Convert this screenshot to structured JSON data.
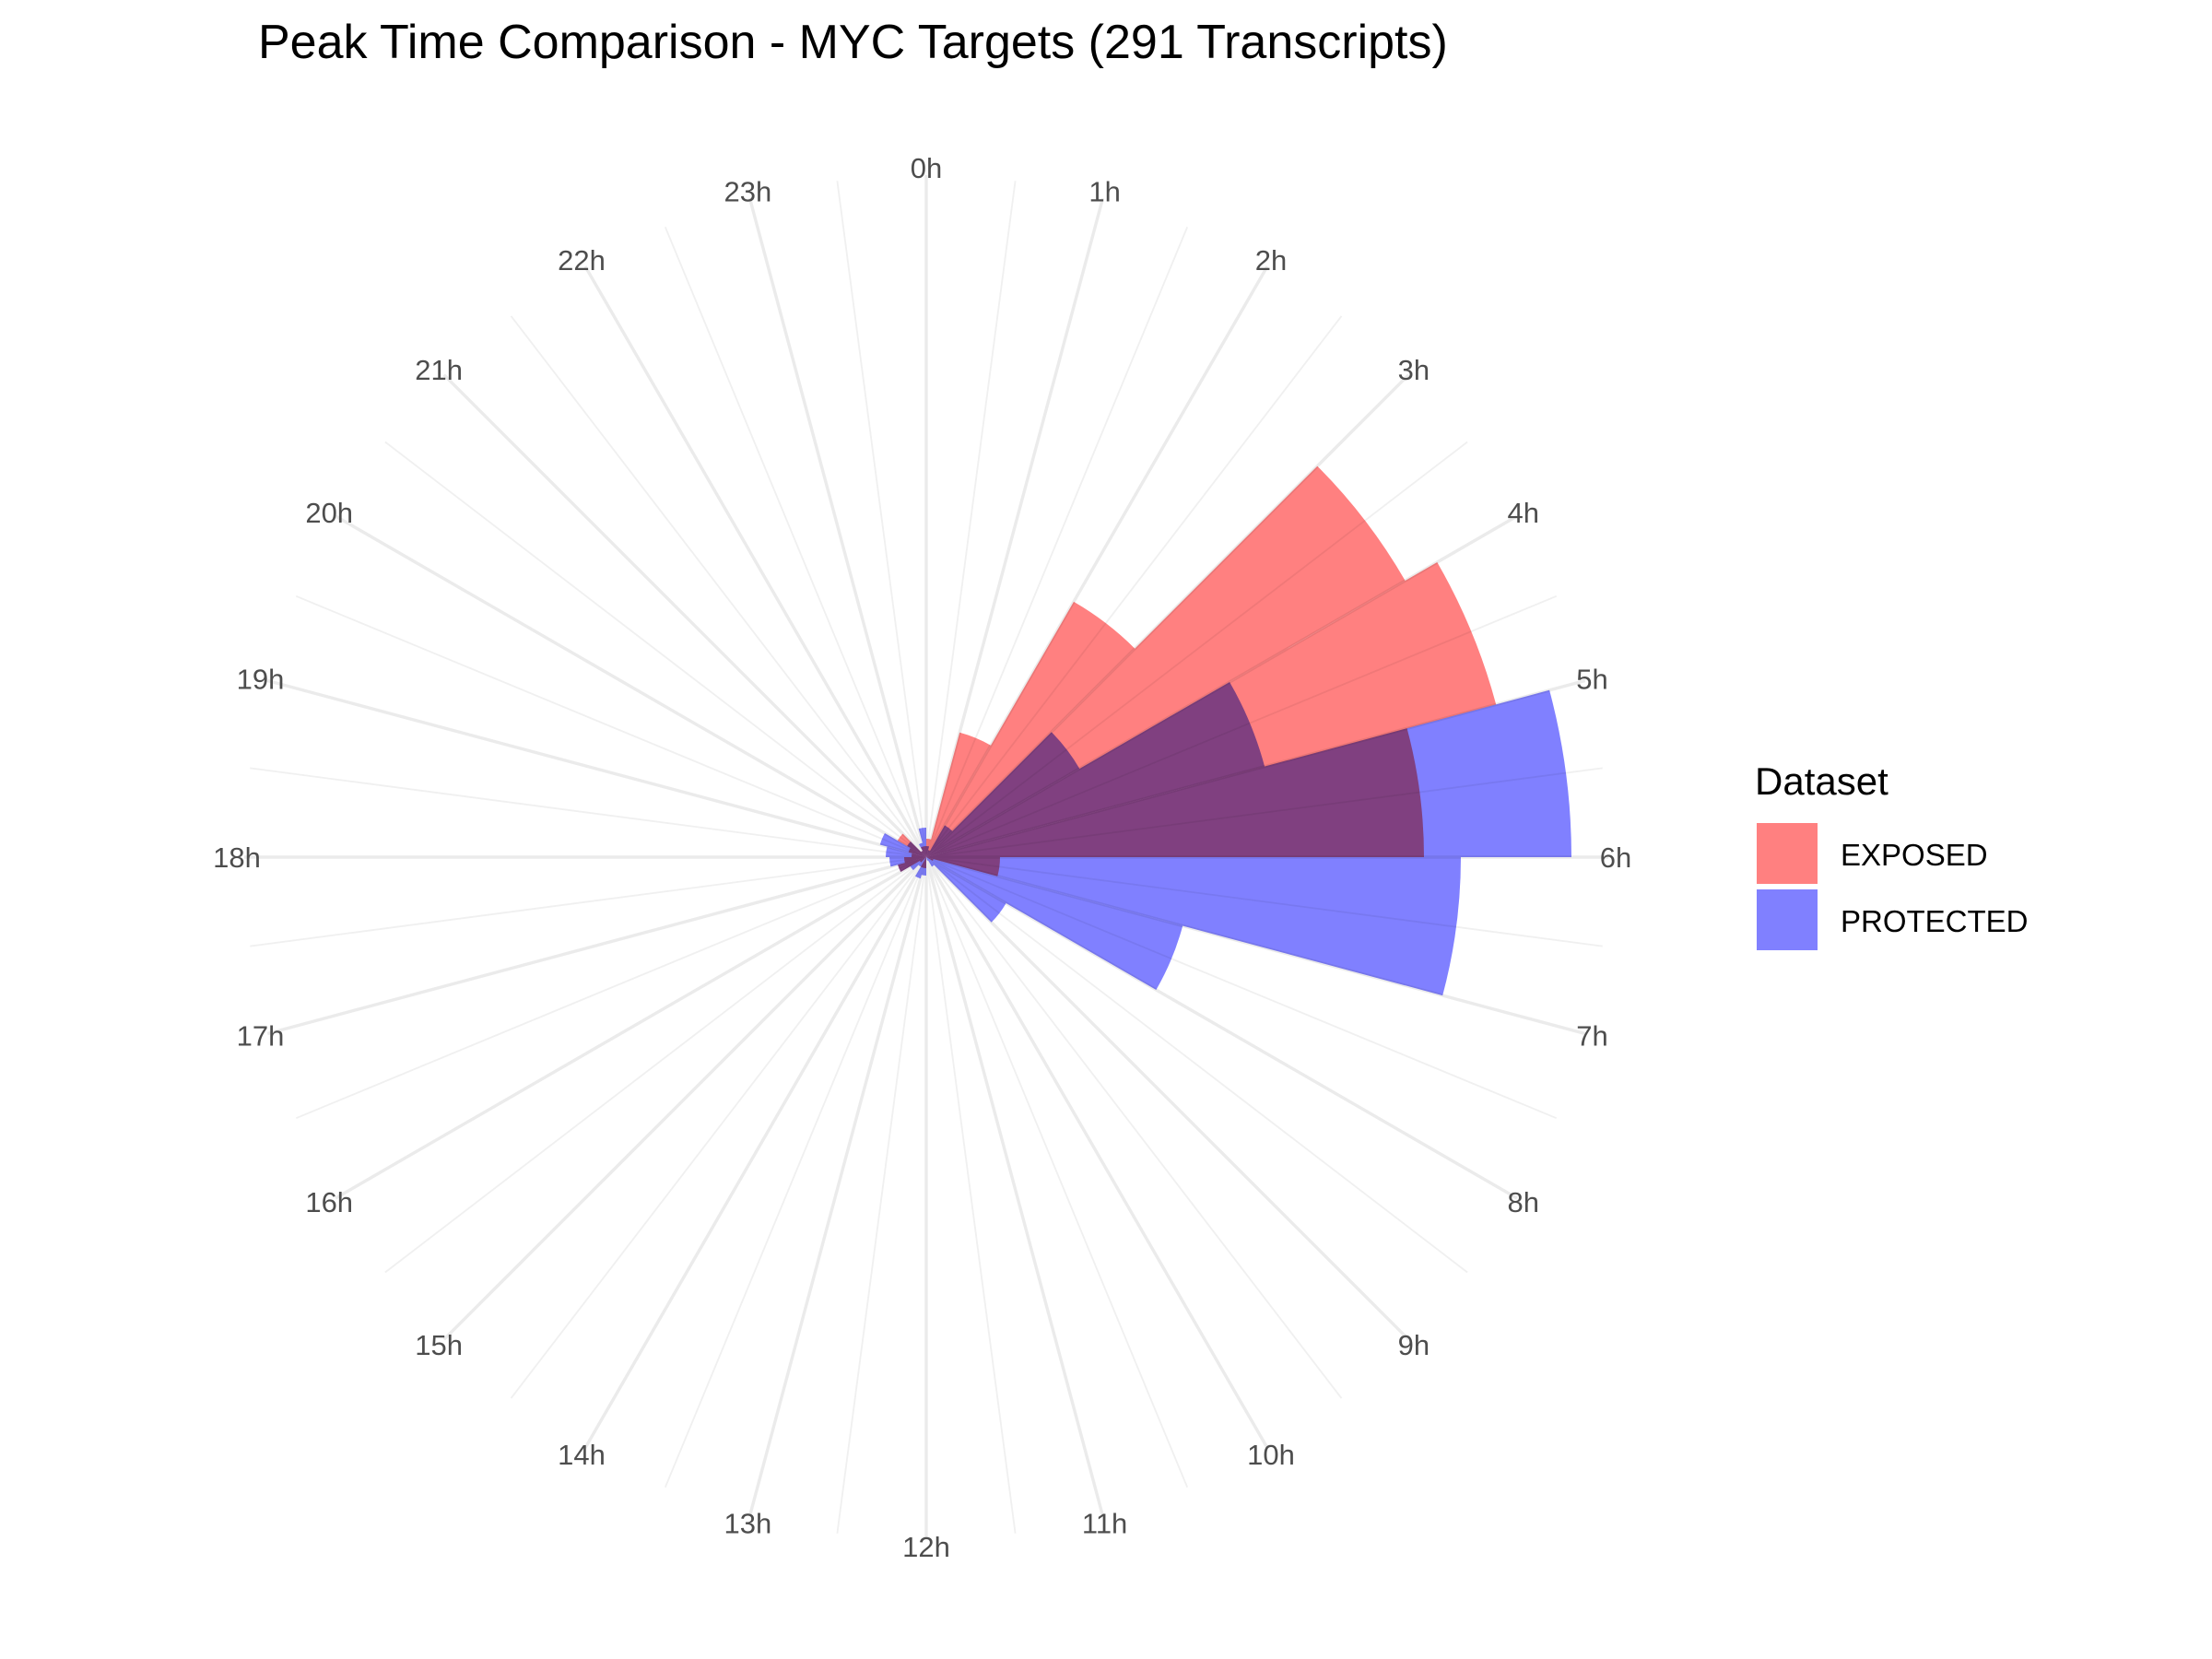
{
  "chart_data": {
    "type": "polar-histogram",
    "title": "Peak Time Comparison - MYC Targets (291 Transcripts)",
    "xlabel": "",
    "ylabel": "",
    "x_tick_labels": [
      "0h",
      "1h",
      "2h",
      "3h",
      "4h",
      "5h",
      "6h",
      "7h",
      "8h",
      "9h",
      "10h",
      "11h",
      "12h",
      "13h",
      "14h",
      "15h",
      "16h",
      "17h",
      "18h",
      "19h",
      "20h",
      "21h",
      "22h",
      "23h"
    ],
    "theta_range": [
      0,
      24
    ],
    "bin_width_h": 1,
    "r_max": 18,
    "legend": {
      "title": "Dataset",
      "position": "right"
    },
    "grid": true,
    "colors": {
      "EXPOSED": "#ff8080",
      "PROTECTED": "#8080ff",
      "overlap": "#8040c0"
    },
    "series": [
      {
        "name": "EXPOSED",
        "values": [
          0.5,
          3.5,
          8,
          15,
          16,
          13.5,
          2,
          0.2,
          0,
          0,
          0,
          0,
          0.3,
          0.3,
          0,
          0.2,
          0.8,
          0.6,
          0.4,
          0.5,
          0.9,
          0.2,
          0.3,
          0.3
        ]
      },
      {
        "name": "PROTECTED",
        "values": [
          0.3,
          0.2,
          1,
          4.8,
          9.5,
          17.5,
          14.5,
          7.2,
          2.5,
          0.3,
          0.1,
          0,
          0.5,
          0.6,
          0.3,
          0.5,
          0.8,
          1,
          1.1,
          1.3,
          0.6,
          0.2,
          0.4,
          0.8
        ]
      }
    ]
  }
}
